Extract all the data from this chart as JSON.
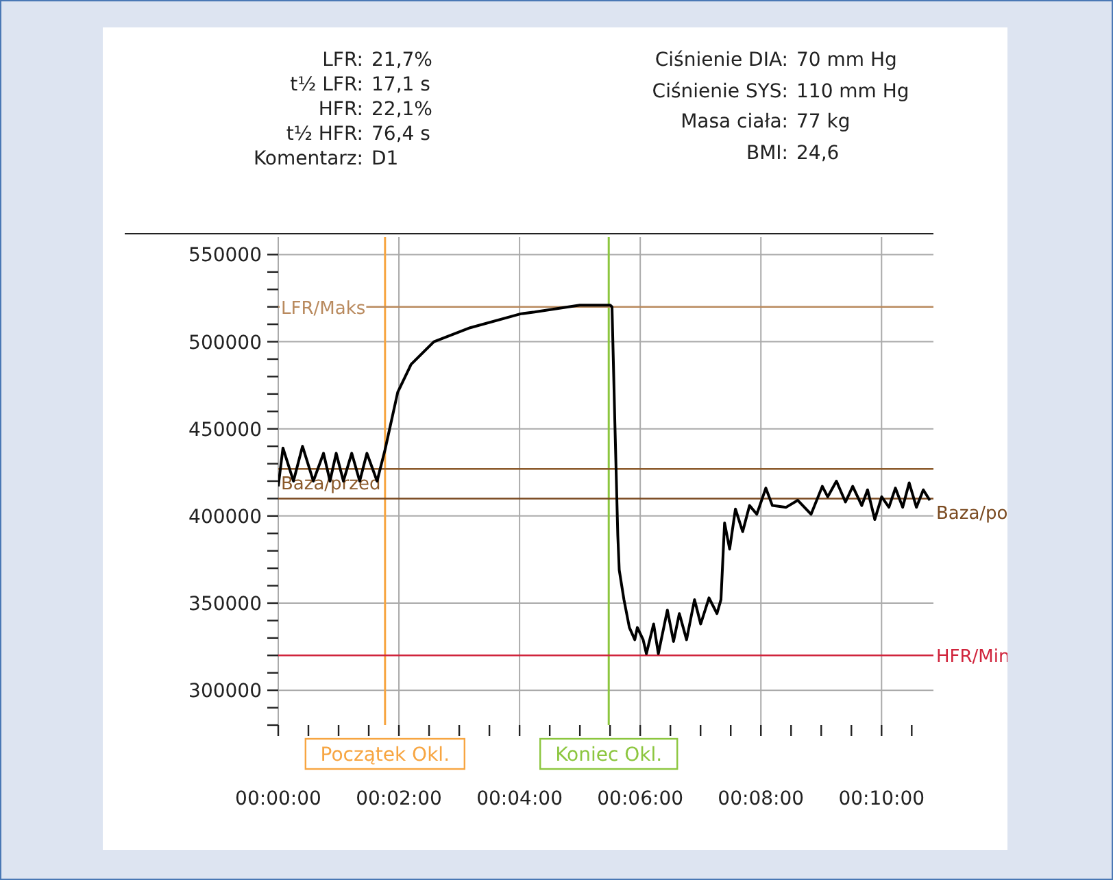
{
  "chart_data": {
    "type": "line",
    "annotations": [
      "LFR: 21,7%",
      "t½ LFR: 17,1 s",
      "HFR: 22,1%",
      "t½ HFR: 76,4 s",
      "Komentarz: D1",
      "Ciśnienie DIA: 70 mm Hg",
      "Ciśnienie SYS: 110 mm Hg",
      "Masa ciała: 77 kg",
      "BMI: 24,6"
    ],
    "x": [
      0,
      0.0013,
      0.0042,
      0.0067,
      0.0097,
      0.0125,
      0.0143,
      0.016,
      0.018,
      0.0203,
      0.0225,
      0.0245,
      0.0273,
      0.0295,
      0.033,
      0.0367,
      0.043,
      0.053,
      0.067,
      0.0708,
      0.0833,
      0.0917,
      0.0922,
      0.093,
      0.0938,
      0.0942,
      0.0955,
      0.097,
      0.0985,
      0.0992,
      0.1008,
      0.1017,
      0.1037,
      0.105,
      0.1075,
      0.1092,
      0.1108,
      0.1128,
      0.115,
      0.1167,
      0.119,
      0.1212,
      0.1223,
      0.1233,
      0.1247,
      0.1263,
      0.1283,
      0.1302,
      0.1322,
      0.1347,
      0.1365,
      0.1403,
      0.1435,
      0.1472,
      0.1503,
      0.1518,
      0.1542,
      0.1567,
      0.1587,
      0.1612,
      0.1628,
      0.1648,
      0.1667,
      0.1687,
      0.1705,
      0.1725,
      0.1743,
      0.1763,
      0.1782,
      0.18
    ],
    "series": [
      {
        "color": "#000000",
        "values": [
          417000,
          439000,
          420000,
          440000,
          420000,
          436000,
          420000,
          436000,
          420000,
          436000,
          420000,
          436000,
          420000,
          438000,
          471000,
          487000,
          500000,
          508000,
          516000,
          517000,
          521000,
          521000,
          520000,
          453000,
          389000,
          369000,
          352000,
          336000,
          329000,
          336000,
          329000,
          321000,
          338000,
          321000,
          346000,
          328000,
          344000,
          329000,
          352000,
          338000,
          353000,
          344000,
          352000,
          396000,
          381000,
          404000,
          391000,
          406000,
          401000,
          416000,
          406000,
          405000,
          409000,
          401000,
          417000,
          411000,
          420000,
          408000,
          417000,
          406000,
          415000,
          398000,
          411000,
          405000,
          416000,
          405000,
          419000,
          405000,
          415000,
          409000
        ]
      }
    ],
    "xlim": [
      0,
      0.181
    ],
    "xticks": [
      {
        "value": 0,
        "label": "00:00:00"
      },
      {
        "value": 0.008333,
        "label": null
      },
      {
        "value": 0.016667,
        "label": null
      },
      {
        "value": 0.025,
        "label": null
      },
      {
        "value": 0.033333,
        "label": "00:02:00"
      },
      {
        "value": 0.041667,
        "label": null
      },
      {
        "value": 0.05,
        "label": null
      },
      {
        "value": 0.058333,
        "label": null
      },
      {
        "value": 0.066667,
        "label": "00:04:00"
      },
      {
        "value": 0.075,
        "label": null
      },
      {
        "value": 0.083333,
        "label": null
      },
      {
        "value": 0.091667,
        "label": null
      },
      {
        "value": 0.1,
        "label": "00:06:00"
      },
      {
        "value": 0.108333,
        "label": null
      },
      {
        "value": 0.116667,
        "label": null
      },
      {
        "value": 0.125,
        "label": null
      },
      {
        "value": 0.133333,
        "label": "00:08:00"
      },
      {
        "value": 0.141667,
        "label": null
      },
      {
        "value": 0.15,
        "label": null
      },
      {
        "value": 0.158333,
        "label": null
      },
      {
        "value": 0.166667,
        "label": "00:10:00"
      },
      {
        "value": 0.175,
        "label": null
      }
    ],
    "ylim": [
      280000,
      560000
    ],
    "yticks": [
      {
        "value": 280000,
        "label": null
      },
      {
        "value": 290000,
        "label": null
      },
      300000,
      {
        "value": 310000,
        "label": null
      },
      {
        "value": 320000,
        "label": null
      },
      {
        "value": 330000,
        "label": null
      },
      {
        "value": 340000,
        "label": null
      },
      350000,
      {
        "value": 360000,
        "label": null
      },
      {
        "value": 370000,
        "label": null
      },
      {
        "value": 380000,
        "label": null
      },
      {
        "value": 390000,
        "label": null
      },
      400000,
      {
        "value": 410000,
        "label": null
      },
      {
        "value": 420000,
        "label": null
      },
      {
        "value": 430000,
        "label": null
      },
      {
        "value": 440000,
        "label": null
      },
      450000,
      {
        "value": 460000,
        "label": null
      },
      {
        "value": 470000,
        "label": null
      },
      {
        "value": 480000,
        "label": null
      },
      {
        "value": 490000,
        "label": null
      },
      500000,
      {
        "value": 510000,
        "label": null
      },
      {
        "value": 520000,
        "label": null
      },
      {
        "value": 530000,
        "label": null
      },
      {
        "value": 540000,
        "label": null
      },
      550000
    ],
    "ref_lines": [
      {
        "axis": "x",
        "value": 0.0295,
        "label": "Początek Okl.",
        "color": "#f7a541"
      },
      {
        "axis": "x",
        "value": 0.0913,
        "label": "Koniec Okl.",
        "color": "#8cc63f"
      },
      {
        "axis": "y",
        "value": 520000,
        "label": "LFR/Maks",
        "color": "#b98a5e"
      },
      {
        "axis": "y",
        "value": 427000,
        "label": "Baza/przed",
        "color": "#8b5a2b"
      },
      {
        "axis": "y",
        "value": 410000,
        "label": "Baza/po",
        "color": "#7a4a20"
      },
      {
        "axis": "y",
        "value": 320000,
        "label": "HFR/Min",
        "color": "#d0243c"
      }
    ],
    "grid": true,
    "marker": "none",
    "line_style": "solid"
  }
}
